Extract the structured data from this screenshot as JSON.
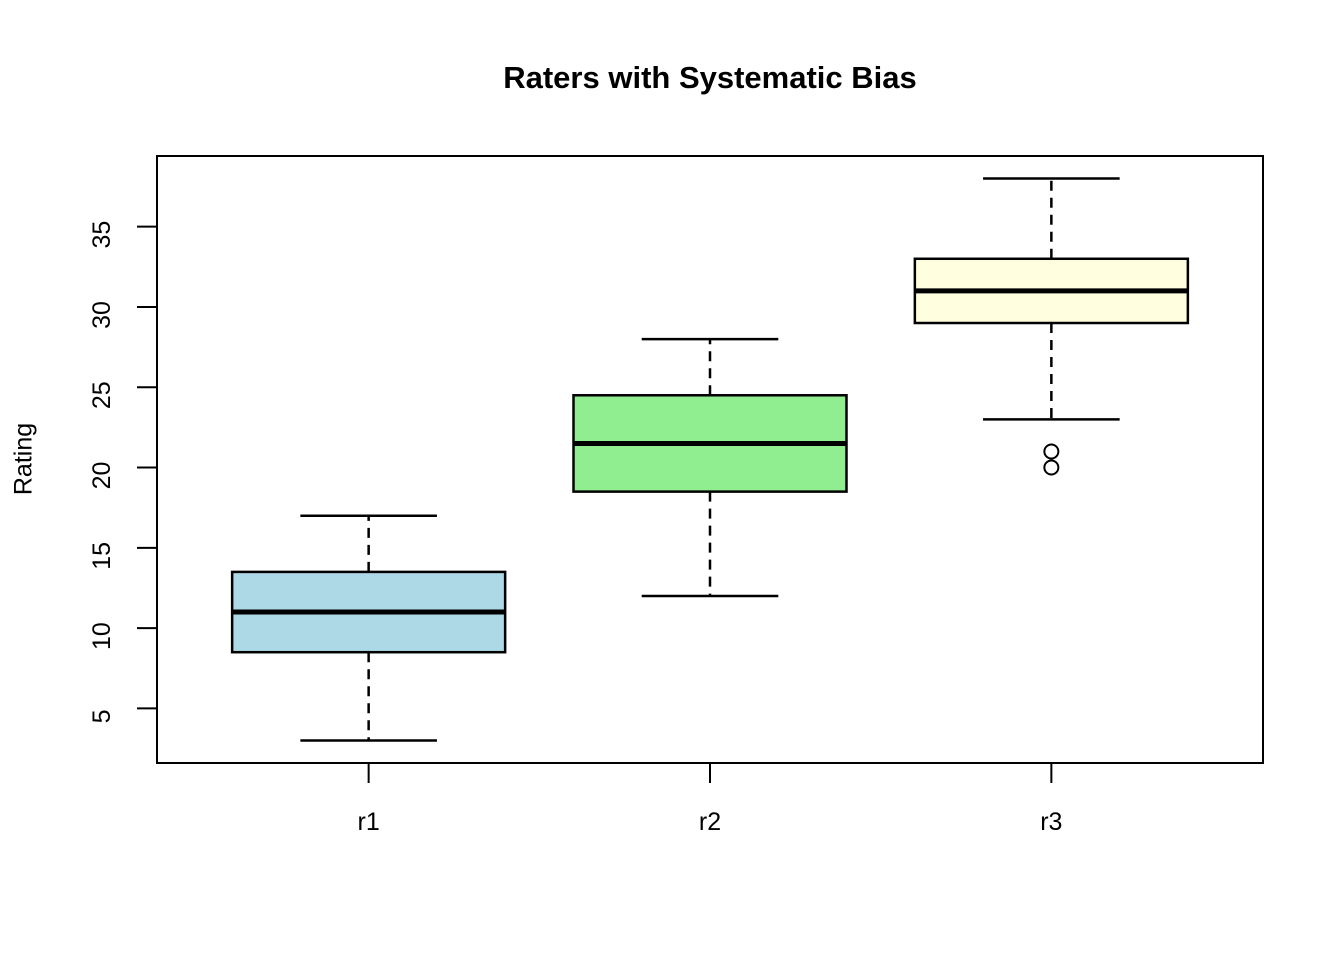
{
  "figure": {
    "background": "#FFFFFF",
    "axis_color": "#000000",
    "text_color": "#000000"
  },
  "chart_data": {
    "type": "boxplot",
    "title": "Raters with Systematic Bias",
    "xlabel": "",
    "ylabel": "Rating",
    "categories": [
      "r1",
      "r2",
      "r3"
    ],
    "yticks": [
      5,
      10,
      15,
      20,
      25,
      30,
      35
    ],
    "ytick_labels": [
      "5",
      "10",
      "15",
      "20",
      "25",
      "30",
      "35"
    ],
    "ylim": [
      1.6,
      39.4
    ],
    "grid": false,
    "legend_position": "none",
    "series": [
      {
        "name": "r1",
        "whisker_low": 3,
        "q1": 8.5,
        "median": 11,
        "q3": 13.5,
        "whisker_high": 17,
        "outliers": [],
        "fill": "#ADD8E6"
      },
      {
        "name": "r2",
        "whisker_low": 12,
        "q1": 18.5,
        "median": 21.5,
        "q3": 24.5,
        "whisker_high": 28,
        "outliers": [],
        "fill": "#90EE90"
      },
      {
        "name": "r3",
        "whisker_low": 23,
        "q1": 29,
        "median": 31,
        "q3": 33,
        "whisker_high": 38,
        "outliers": [
          21,
          20
        ],
        "fill": "#FFFFE0"
      }
    ]
  }
}
